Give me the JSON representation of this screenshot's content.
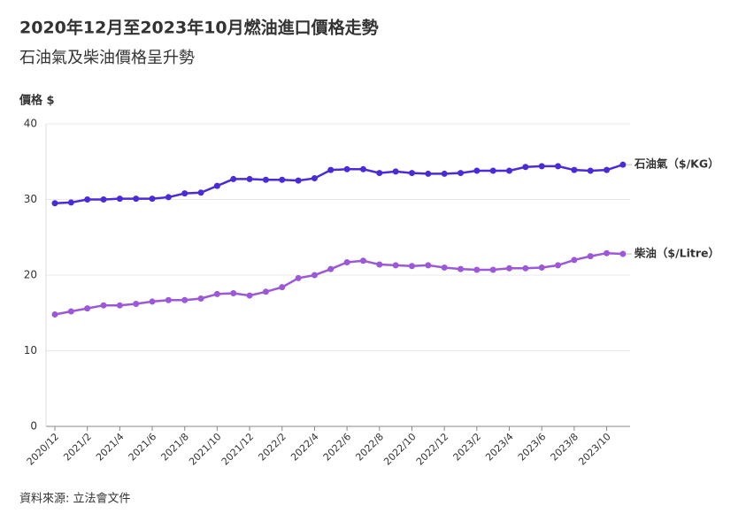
{
  "chart_data": {
    "type": "line",
    "title": "2020年12月至2023年10月燃油進口價格走勢",
    "subtitle": "石油氣及柴油價格呈升勢",
    "y_label": "價格 $",
    "source": "資料來源: 立法會文件",
    "categories": [
      "2020/12",
      null,
      "2021/2",
      null,
      "2021/4",
      null,
      "2021/6",
      null,
      "2021/8",
      null,
      "2021/10",
      null,
      "2021/12",
      null,
      "2022/2",
      null,
      "2022/4",
      null,
      "2022/6",
      null,
      "2022/8",
      null,
      "2022/10",
      null,
      "2022/12",
      null,
      "2023/2",
      null,
      "2023/4",
      null,
      "2023/6",
      null,
      "2023/8",
      null,
      "2023/10",
      null
    ],
    "series": [
      {
        "name": "石油氣（$/KG）",
        "color": "#4b2bd8",
        "values": [
          29.5,
          29.6,
          30.0,
          30.0,
          30.1,
          30.1,
          30.1,
          30.3,
          30.8,
          30.9,
          31.8,
          32.7,
          32.7,
          32.6,
          32.6,
          32.5,
          32.8,
          33.9,
          34.0,
          34.0,
          33.5,
          33.7,
          33.5,
          33.4,
          33.4,
          33.5,
          33.8,
          33.8,
          33.8,
          34.3,
          34.4,
          34.4,
          33.9,
          33.8,
          33.9,
          34.6
        ]
      },
      {
        "name": "柴油（$/Litre）",
        "color": "#9b59d9",
        "values": [
          14.8,
          15.2,
          15.6,
          16.0,
          16.0,
          16.2,
          16.5,
          16.7,
          16.7,
          16.9,
          17.5,
          17.6,
          17.3,
          17.8,
          18.4,
          19.6,
          20.0,
          20.8,
          21.7,
          21.9,
          21.4,
          21.3,
          21.2,
          21.3,
          21.0,
          20.8,
          20.7,
          20.7,
          20.9,
          20.9,
          21.0,
          21.3,
          22.0,
          22.5,
          22.9,
          22.8
        ]
      }
    ],
    "ylim": [
      0,
      40
    ],
    "yticks": [
      0,
      10,
      20,
      30,
      40
    ],
    "grid": true
  }
}
